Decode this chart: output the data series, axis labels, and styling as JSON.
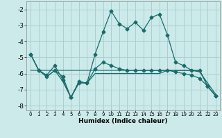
{
  "xlabel": "Humidex (Indice chaleur)",
  "background_color": "#cceaea",
  "grid_color": "#aacfcf",
  "line_color": "#1a6b6b",
  "x": [
    0,
    1,
    2,
    3,
    4,
    5,
    6,
    7,
    8,
    9,
    10,
    11,
    12,
    13,
    14,
    15,
    16,
    17,
    18,
    19,
    20,
    21,
    22,
    23
  ],
  "line_main": [
    -4.8,
    -5.8,
    -6.1,
    -5.5,
    -6.4,
    -7.5,
    -6.5,
    -6.6,
    -4.8,
    -3.4,
    -2.1,
    -2.9,
    -3.2,
    -2.8,
    -3.3,
    -2.5,
    -2.3,
    -3.6,
    -5.3,
    -5.5,
    -5.8,
    -5.8,
    -6.8,
    -7.4
  ],
  "line_avg": [
    -4.8,
    -5.8,
    -6.2,
    -5.8,
    -6.2,
    -7.5,
    -6.6,
    -6.6,
    -5.7,
    -5.3,
    -5.5,
    -5.7,
    -5.8,
    -5.8,
    -5.8,
    -5.8,
    -5.8,
    -5.8,
    -5.9,
    -6.0,
    -6.1,
    -6.3,
    -6.8,
    -7.4
  ],
  "line_min": [
    -4.8,
    -5.8,
    -6.2,
    -5.8,
    -6.5,
    -7.5,
    -6.5,
    -6.6,
    -6.0,
    -6.0,
    -6.0,
    -6.0,
    -6.0,
    -6.0,
    -6.0,
    -6.0,
    -6.0,
    -5.8,
    -5.8,
    -5.8,
    -5.8,
    -5.9,
    -6.6,
    -7.3
  ],
  "line_trend": [
    -5.8,
    -5.8,
    -5.8,
    -5.8,
    -5.8,
    -5.8,
    -5.8,
    -5.8,
    -5.8,
    -5.8,
    -5.8,
    -5.8,
    -5.8,
    -5.8,
    -5.8,
    -5.8,
    -5.8,
    -5.8,
    -5.8,
    -5.8,
    -5.8,
    -5.8,
    -6.8,
    -7.4
  ],
  "ylim": [
    -8.3,
    -1.5
  ],
  "yticks": [
    -8,
    -7,
    -6,
    -5,
    -4,
    -3,
    -2
  ],
  "xticks": [
    0,
    1,
    2,
    3,
    4,
    5,
    6,
    7,
    8,
    9,
    10,
    11,
    12,
    13,
    14,
    15,
    16,
    17,
    18,
    19,
    20,
    21,
    22,
    23
  ]
}
